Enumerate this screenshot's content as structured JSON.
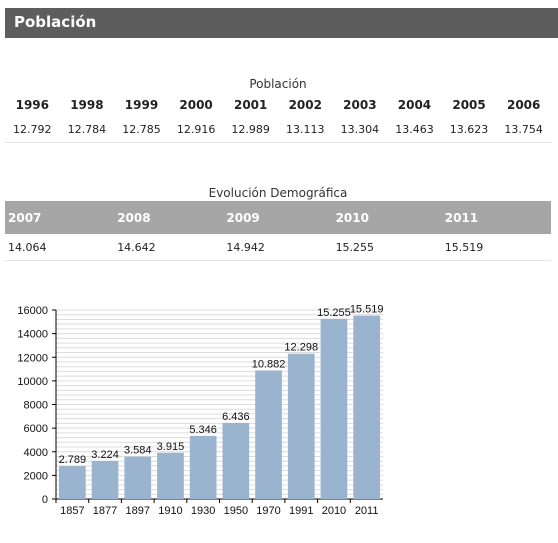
{
  "header": {
    "title": "Población"
  },
  "table1": {
    "caption": "Población",
    "years": [
      "1996",
      "1998",
      "1999",
      "2000",
      "2001",
      "2002",
      "2003",
      "2004",
      "2005",
      "2006"
    ],
    "values": [
      "12.792",
      "12.784",
      "12.785",
      "12.916",
      "12.989",
      "13.113",
      "13.304",
      "13.463",
      "13.623",
      "13.754"
    ]
  },
  "table2": {
    "caption": "Evolución Demográfica",
    "years": [
      "2007",
      "2008",
      "2009",
      "2010",
      "2011"
    ],
    "values": [
      "14.064",
      "14.642",
      "14.942",
      "15.255",
      "15.519"
    ]
  },
  "chart_data": {
    "type": "bar",
    "categories": [
      "1857",
      "1877",
      "1897",
      "1910",
      "1930",
      "1950",
      "1970",
      "1991",
      "2010",
      "2011"
    ],
    "values": [
      2789,
      3224,
      3584,
      3915,
      5346,
      6436,
      10882,
      12298,
      15255,
      15519
    ],
    "data_labels": [
      "2.789",
      "3.224",
      "3.584",
      "3.915",
      "5.346",
      "6.436",
      "10.882",
      "12.298",
      "15.255",
      "15.519"
    ],
    "yticks": [
      "0",
      "2000",
      "4000",
      "6000",
      "8000",
      "10000",
      "12000",
      "14000",
      "16000"
    ],
    "ylim": [
      0,
      16000
    ],
    "grid": true,
    "bar_color": "#9ab3cf",
    "title": "",
    "xlabel": "",
    "ylabel": ""
  }
}
